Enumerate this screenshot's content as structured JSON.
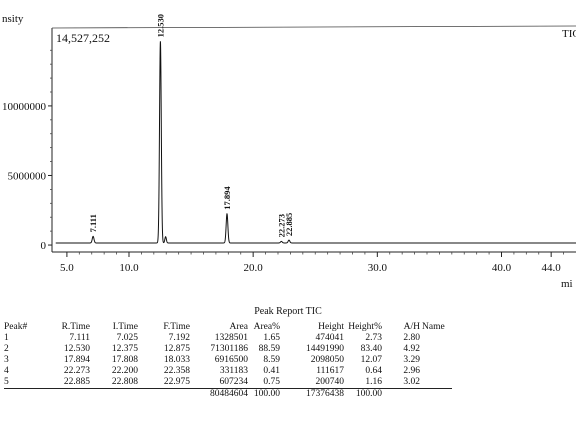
{
  "chart_data": {
    "type": "line",
    "ylabel_partial": "nsity",
    "xlabel_partial": "mi",
    "corner_label": "TIC",
    "max_intensity_label": "14,527,252",
    "xlim": [
      3.8,
      46.0
    ],
    "ylim": [
      -500000,
      15600000
    ],
    "x_ticks": [
      {
        "value": 5.0,
        "label": "5.0"
      },
      {
        "value": 10.0,
        "label": "10.0"
      },
      {
        "value": 20.0,
        "label": "20.0"
      },
      {
        "value": 30.0,
        "label": "30.0"
      },
      {
        "value": 40.0,
        "label": "40.0"
      },
      {
        "value": 44.0,
        "label": "44.0"
      }
    ],
    "y_ticks": [
      {
        "value": 0,
        "label": "0"
      },
      {
        "value": 5000000,
        "label": "5000000"
      },
      {
        "value": 10000000,
        "label": "10000000"
      }
    ],
    "peaks": [
      {
        "rt": 7.111,
        "label": "7.111",
        "height": 474041
      },
      {
        "rt": 12.53,
        "label": "12.530",
        "height": 14491990
      },
      {
        "rt": 17.894,
        "label": "17.894",
        "height": 2098050
      },
      {
        "rt": 22.273,
        "label": "22.273",
        "height": 111617
      },
      {
        "rt": 22.885,
        "label": "22.885",
        "height": 200740
      }
    ]
  },
  "report": {
    "title": "Peak Report TIC",
    "headers": [
      "Peak#",
      "R.Time",
      "I.Time",
      "F.Time",
      "Area",
      "Area%",
      "Height",
      "Height%",
      "A/H",
      "Name"
    ],
    "rows": [
      [
        "1",
        "7.111",
        "7.025",
        "7.192",
        "1328501",
        "1.65",
        "474041",
        "2.73",
        "2.80",
        ""
      ],
      [
        "2",
        "12.530",
        "12.375",
        "12.875",
        "71301186",
        "88.59",
        "14491990",
        "83.40",
        "4.92",
        ""
      ],
      [
        "3",
        "17.894",
        "17.808",
        "18.033",
        "6916500",
        "8.59",
        "2098050",
        "12.07",
        "3.29",
        ""
      ],
      [
        "4",
        "22.273",
        "22.200",
        "22.358",
        "331183",
        "0.41",
        "111617",
        "0.64",
        "2.96",
        ""
      ],
      [
        "5",
        "22.885",
        "22.808",
        "22.975",
        "607234",
        "0.75",
        "200740",
        "1.16",
        "3.02",
        ""
      ]
    ],
    "totals": [
      "",
      "",
      "",
      "",
      "80484604",
      "100.00",
      "17376438",
      "100.00",
      "",
      ""
    ]
  }
}
